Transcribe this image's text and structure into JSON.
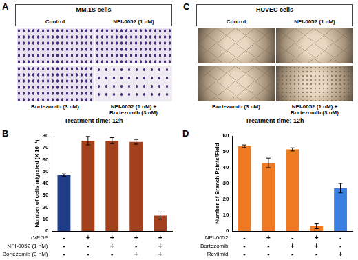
{
  "image_panels": [
    {
      "letter": "A",
      "title": "MM.1S cells",
      "style": "stain",
      "labels_top": [
        "Control",
        "NPI-0052 (1 nM)"
      ],
      "labels_bottom": [
        "Bortezomib (3 nM)",
        "NPI-0052 (1 nM) + Bortezomib (3 nM)"
      ],
      "footer": "Treatment time: 12h"
    },
    {
      "letter": "C",
      "title": "HUVEC cells",
      "style": "network",
      "labels_top": [
        "Control",
        "NPI-0052 (1 nM)"
      ],
      "labels_bottom": [
        "Bortezomib (3 nM)",
        "NPI-0052 (1 nM) + Bortezomib (3 nM)"
      ],
      "footer": "Treatment time: 12h"
    }
  ],
  "chart_data": [
    {
      "panel": "B",
      "type": "bar",
      "categories": [
        null,
        null,
        null,
        null,
        null
      ],
      "values": [
        47,
        76,
        76,
        75,
        13
      ],
      "errors": [
        1,
        3.5,
        2.5,
        2,
        3
      ],
      "colors": [
        "#1f3c88",
        "#a3411c",
        "#a3411c",
        "#a3411c",
        "#a3411c"
      ],
      "y_label": "Number of cells migrated (X 10⁻¹)",
      "ylim": [
        0,
        80
      ],
      "yticks": [
        0,
        10,
        20,
        30,
        40,
        50,
        60,
        70,
        80
      ],
      "grid": false,
      "conditions": [
        {
          "name": "rVEGF",
          "signs": [
            "-",
            "+",
            "+",
            "+",
            "+"
          ]
        },
        {
          "name": "NPI-0052 (1 nM)",
          "signs": [
            "-",
            "-",
            "+",
            "-",
            "+"
          ]
        },
        {
          "name": "Bortezomib (3 nM)",
          "signs": [
            "-",
            "-",
            "-",
            "+",
            "+"
          ]
        }
      ]
    },
    {
      "panel": "D",
      "type": "bar",
      "categories": [
        null,
        null,
        null,
        null,
        null
      ],
      "values": [
        53.5,
        43,
        51.5,
        3,
        27
      ],
      "errors": [
        0.8,
        3,
        1,
        1.5,
        3
      ],
      "colors": [
        "#f07a22",
        "#f07a22",
        "#f07a22",
        "#f07a22",
        "#3b7fe0"
      ],
      "y_label": "Number of Branch Points/Field",
      "ylim": [
        0,
        60
      ],
      "yticks": [
        0,
        10,
        20,
        30,
        40,
        50,
        60
      ],
      "grid": false,
      "conditions": [
        {
          "name": "NPI-0052",
          "signs": [
            "-",
            "+",
            "-",
            "+",
            "-"
          ]
        },
        {
          "name": "Bortezomib",
          "signs": [
            "-",
            "-",
            "+",
            "+",
            "-"
          ]
        },
        {
          "name": "Revlimid",
          "signs": [
            "-",
            "-",
            "-",
            "-",
            "+"
          ]
        }
      ]
    }
  ]
}
